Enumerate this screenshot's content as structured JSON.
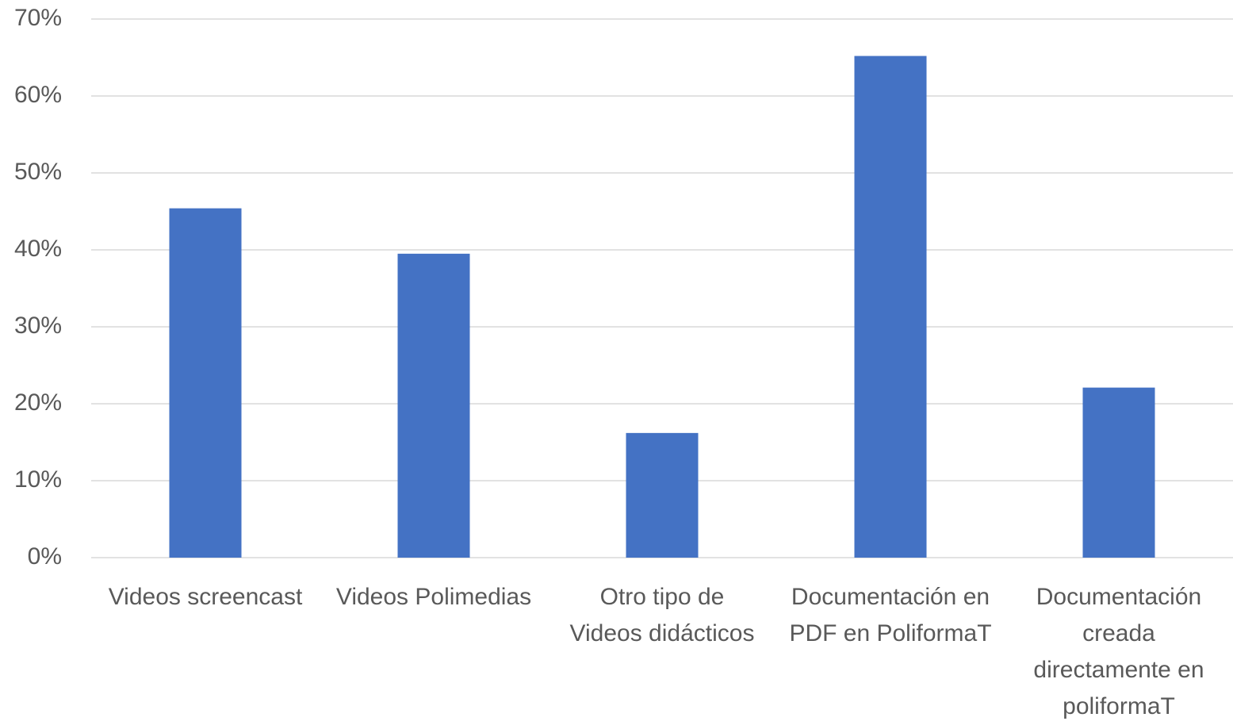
{
  "chart_data": {
    "type": "bar",
    "categories": [
      "Videos screencast",
      "Videos Polimedias",
      "Otro tipo de\nVideos didácticos",
      "Documentación en\nPDF en PoliformaT",
      "Documentación\ncreada\ndirectamente en\npoliformaT"
    ],
    "values": [
      45.4,
      39.5,
      16.2,
      65.2,
      22.1
    ],
    "color": "#4472c4",
    "ylim": [
      0,
      70
    ],
    "yticks": [
      {
        "value": 0,
        "label": "0%"
      },
      {
        "value": 10,
        "label": "10%"
      },
      {
        "value": 20,
        "label": "20%"
      },
      {
        "value": 30,
        "label": "30%"
      },
      {
        "value": 40,
        "label": "40%"
      },
      {
        "value": 50,
        "label": "50%"
      },
      {
        "value": 60,
        "label": "60%"
      },
      {
        "value": 70,
        "label": "70%"
      }
    ],
    "grid": true
  }
}
